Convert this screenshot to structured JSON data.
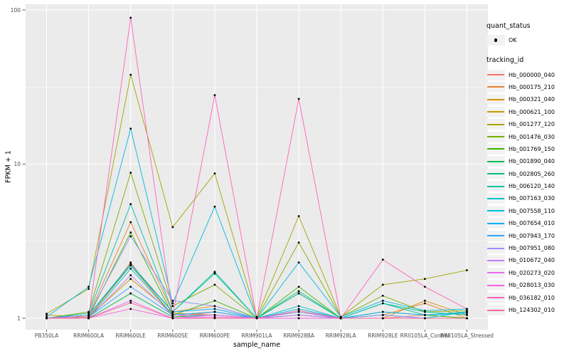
{
  "chart_data": {
    "type": "line",
    "title": "",
    "xlabel": "sample_name",
    "ylabel": "FPKM + 1",
    "y_scale": "log10",
    "y_ticks": [
      1,
      10,
      100
    ],
    "y_minor_ticks": [
      3.1623,
      31.623
    ],
    "ylim": [
      0.85,
      107
    ],
    "grid": true,
    "legend_position": "right",
    "categories": [
      "PB350LA",
      "RRIM600LA",
      "RRIM600LE",
      "RRIM600SE",
      "RRIM600PE",
      "RRIM901LA",
      "RRIM928BA",
      "RRIM928LA",
      "RRIM928LE",
      "RRII105LA_Control",
      "RRII105LA_Stressed"
    ],
    "legend_quant": {
      "title": "quant_status",
      "ok_label": "OK"
    },
    "legend_tracking": {
      "title": "tracking_id"
    },
    "colors": {
      "panel_bg": "#EBEBEB",
      "grid": "#FFFFFF",
      "tick": "#333333",
      "tick_label": "#4D4D4D",
      "point": "#000000",
      "legend_key_bg": "#F2F2F2"
    },
    "series": [
      {
        "name": "Hb_000000_040",
        "color": "#F8766D",
        "values": [
          1.0,
          1.0,
          2.3,
          1.02,
          1.1,
          1.0,
          1.05,
          1.0,
          1.0,
          1.05,
          1.0
        ]
      },
      {
        "name": "Hb_000175_210",
        "color": "#EA8331",
        "values": [
          1.0,
          1.05,
          4.2,
          1.1,
          1.2,
          1.0,
          1.45,
          1.0,
          1.05,
          1.25,
          1.0
        ]
      },
      {
        "name": "Hb_000321_040",
        "color": "#D89000",
        "values": [
          1.0,
          1.02,
          2.2,
          1.05,
          1.1,
          1.0,
          1.1,
          1.0,
          1.0,
          1.3,
          1.05
        ]
      },
      {
        "name": "Hb_000621_100",
        "color": "#C09B00",
        "values": [
          1.05,
          1.02,
          1.8,
          1.08,
          1.05,
          1.0,
          1.05,
          1.0,
          1.0,
          1.0,
          1.0
        ]
      },
      {
        "name": "Hb_001277_120",
        "color": "#A3A500",
        "values": [
          1.07,
          1.55,
          38.0,
          3.9,
          8.7,
          1.02,
          4.6,
          1.02,
          1.65,
          1.8,
          2.05
        ]
      },
      {
        "name": "Hb_001476_030",
        "color": "#7CAE00",
        "values": [
          1.0,
          1.1,
          8.8,
          1.2,
          1.65,
          1.0,
          3.1,
          1.02,
          1.4,
          1.1,
          1.12
        ]
      },
      {
        "name": "Hb_001769_150",
        "color": "#39B600",
        "values": [
          1.0,
          1.02,
          3.6,
          1.05,
          1.3,
          1.0,
          1.6,
          1.0,
          1.1,
          1.05,
          1.0
        ]
      },
      {
        "name": "Hb_001890_040",
        "color": "#00BB4E",
        "values": [
          1.0,
          1.0,
          1.45,
          1.02,
          1.05,
          1.0,
          1.1,
          1.0,
          1.0,
          1.0,
          1.0
        ]
      },
      {
        "name": "Hb_002805_260",
        "color": "#00C087",
        "values": [
          1.0,
          1.05,
          2.25,
          1.1,
          1.95,
          1.0,
          1.5,
          1.0,
          1.25,
          1.1,
          1.05
        ]
      },
      {
        "name": "Hb_006120_140",
        "color": "#00C1A3",
        "values": [
          1.0,
          1.08,
          5.5,
          1.1,
          2.0,
          1.0,
          1.45,
          1.0,
          1.25,
          1.05,
          1.1
        ]
      },
      {
        "name": "Hb_007163_030",
        "color": "#00BFC4",
        "values": [
          1.0,
          1.0,
          2.1,
          1.05,
          1.1,
          1.0,
          1.2,
          1.0,
          1.05,
          1.0,
          1.1
        ]
      },
      {
        "name": "Hb_007558_110",
        "color": "#00BAE0",
        "values": [
          1.02,
          1.6,
          17.0,
          1.25,
          5.3,
          1.0,
          2.3,
          1.02,
          1.3,
          1.12,
          1.15
        ]
      },
      {
        "name": "Hb_007654_010",
        "color": "#00B0F6",
        "values": [
          1.0,
          1.05,
          2.2,
          1.1,
          1.15,
          1.0,
          1.15,
          1.0,
          1.1,
          1.05,
          1.08
        ]
      },
      {
        "name": "Hb_007943_170",
        "color": "#35A2FF",
        "values": [
          1.0,
          1.02,
          1.6,
          1.05,
          1.1,
          1.0,
          1.05,
          1.0,
          1.0,
          1.0,
          1.0
        ]
      },
      {
        "name": "Hb_007951_080",
        "color": "#9590FF",
        "values": [
          1.0,
          1.05,
          3.4,
          1.3,
          1.2,
          1.0,
          1.1,
          1.0,
          1.05,
          1.0,
          1.0
        ]
      },
      {
        "name": "Hb_010672_040",
        "color": "#C77CFF",
        "values": [
          1.0,
          1.0,
          1.9,
          1.05,
          1.05,
          1.0,
          1.05,
          1.0,
          1.0,
          1.0,
          1.0
        ]
      },
      {
        "name": "Hb_020273_020",
        "color": "#E76BF3",
        "values": [
          1.0,
          1.0,
          1.3,
          1.0,
          1.05,
          1.0,
          1.0,
          1.0,
          1.0,
          1.0,
          1.0
        ]
      },
      {
        "name": "Hb_028013_030",
        "color": "#FA62DB",
        "values": [
          1.0,
          1.0,
          1.15,
          1.0,
          1.02,
          1.0,
          1.0,
          1.0,
          1.0,
          1.0,
          1.0
        ]
      },
      {
        "name": "Hb_036182_010",
        "color": "#FF62BC",
        "values": [
          1.0,
          1.02,
          89.0,
          1.05,
          28.0,
          1.0,
          26.5,
          1.0,
          2.4,
          1.6,
          1.15
        ]
      },
      {
        "name": "Hb_124302_010",
        "color": "#FF6A98",
        "values": [
          1.0,
          1.0,
          1.26,
          1.0,
          1.0,
          1.0,
          1.12,
          1.0,
          1.0,
          1.0,
          1.0
        ]
      }
    ]
  }
}
